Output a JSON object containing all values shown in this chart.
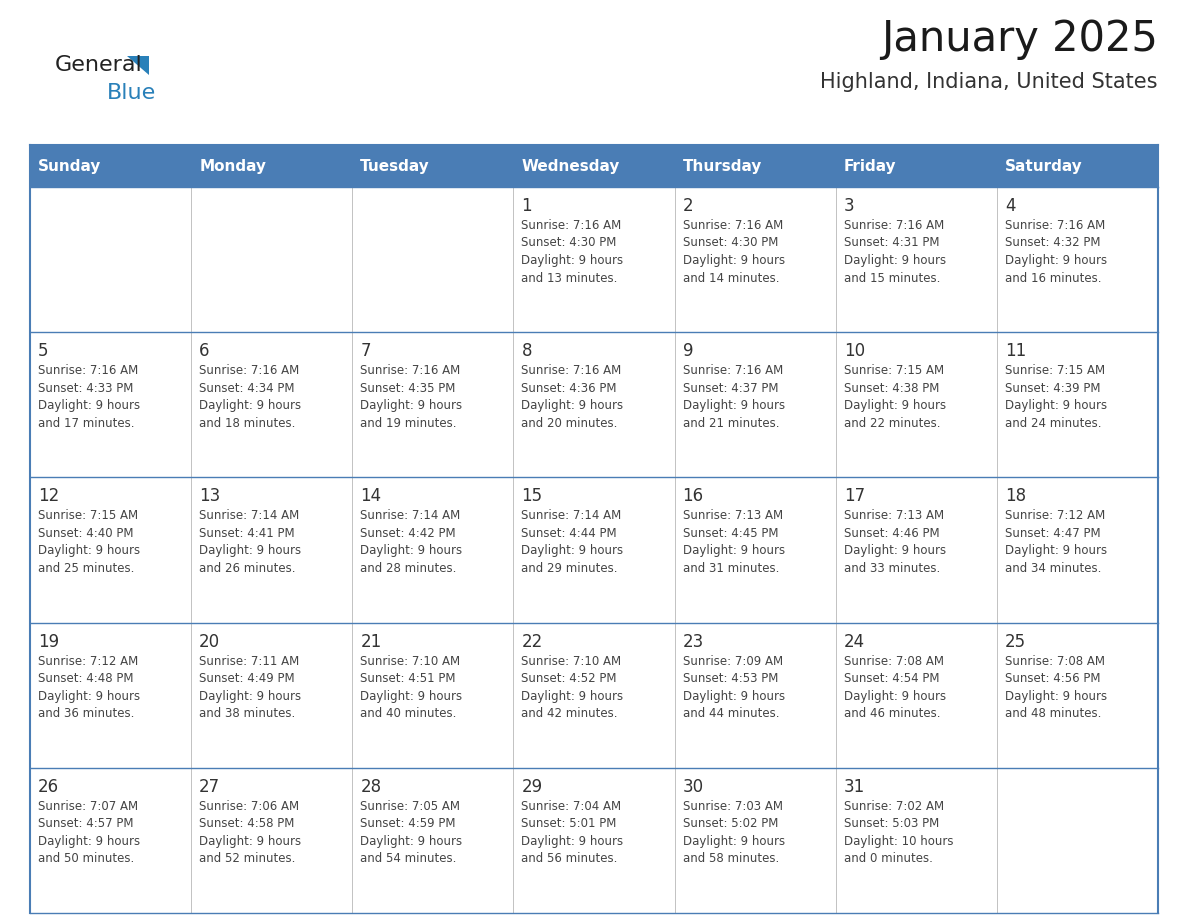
{
  "title": "January 2025",
  "subtitle": "Highland, Indiana, United States",
  "header_bg": "#4A7DB5",
  "header_text_color": "#FFFFFF",
  "row_bg_colors": [
    "#FFFFFF",
    "#FFFFFF",
    "#FFFFFF",
    "#FFFFFF",
    "#FFFFFF"
  ],
  "border_color": "#4A7DB5",
  "text_color": "#444444",
  "day_num_color": "#333333",
  "days_of_week": [
    "Sunday",
    "Monday",
    "Tuesday",
    "Wednesday",
    "Thursday",
    "Friday",
    "Saturday"
  ],
  "calendar_data": [
    [
      {
        "day": "",
        "lines": []
      },
      {
        "day": "",
        "lines": []
      },
      {
        "day": "",
        "lines": []
      },
      {
        "day": "1",
        "lines": [
          "Sunrise: 7:16 AM",
          "Sunset: 4:30 PM",
          "Daylight: 9 hours",
          "and 13 minutes."
        ]
      },
      {
        "day": "2",
        "lines": [
          "Sunrise: 7:16 AM",
          "Sunset: 4:30 PM",
          "Daylight: 9 hours",
          "and 14 minutes."
        ]
      },
      {
        "day": "3",
        "lines": [
          "Sunrise: 7:16 AM",
          "Sunset: 4:31 PM",
          "Daylight: 9 hours",
          "and 15 minutes."
        ]
      },
      {
        "day": "4",
        "lines": [
          "Sunrise: 7:16 AM",
          "Sunset: 4:32 PM",
          "Daylight: 9 hours",
          "and 16 minutes."
        ]
      }
    ],
    [
      {
        "day": "5",
        "lines": [
          "Sunrise: 7:16 AM",
          "Sunset: 4:33 PM",
          "Daylight: 9 hours",
          "and 17 minutes."
        ]
      },
      {
        "day": "6",
        "lines": [
          "Sunrise: 7:16 AM",
          "Sunset: 4:34 PM",
          "Daylight: 9 hours",
          "and 18 minutes."
        ]
      },
      {
        "day": "7",
        "lines": [
          "Sunrise: 7:16 AM",
          "Sunset: 4:35 PM",
          "Daylight: 9 hours",
          "and 19 minutes."
        ]
      },
      {
        "day": "8",
        "lines": [
          "Sunrise: 7:16 AM",
          "Sunset: 4:36 PM",
          "Daylight: 9 hours",
          "and 20 minutes."
        ]
      },
      {
        "day": "9",
        "lines": [
          "Sunrise: 7:16 AM",
          "Sunset: 4:37 PM",
          "Daylight: 9 hours",
          "and 21 minutes."
        ]
      },
      {
        "day": "10",
        "lines": [
          "Sunrise: 7:15 AM",
          "Sunset: 4:38 PM",
          "Daylight: 9 hours",
          "and 22 minutes."
        ]
      },
      {
        "day": "11",
        "lines": [
          "Sunrise: 7:15 AM",
          "Sunset: 4:39 PM",
          "Daylight: 9 hours",
          "and 24 minutes."
        ]
      }
    ],
    [
      {
        "day": "12",
        "lines": [
          "Sunrise: 7:15 AM",
          "Sunset: 4:40 PM",
          "Daylight: 9 hours",
          "and 25 minutes."
        ]
      },
      {
        "day": "13",
        "lines": [
          "Sunrise: 7:14 AM",
          "Sunset: 4:41 PM",
          "Daylight: 9 hours",
          "and 26 minutes."
        ]
      },
      {
        "day": "14",
        "lines": [
          "Sunrise: 7:14 AM",
          "Sunset: 4:42 PM",
          "Daylight: 9 hours",
          "and 28 minutes."
        ]
      },
      {
        "day": "15",
        "lines": [
          "Sunrise: 7:14 AM",
          "Sunset: 4:44 PM",
          "Daylight: 9 hours",
          "and 29 minutes."
        ]
      },
      {
        "day": "16",
        "lines": [
          "Sunrise: 7:13 AM",
          "Sunset: 4:45 PM",
          "Daylight: 9 hours",
          "and 31 minutes."
        ]
      },
      {
        "day": "17",
        "lines": [
          "Sunrise: 7:13 AM",
          "Sunset: 4:46 PM",
          "Daylight: 9 hours",
          "and 33 minutes."
        ]
      },
      {
        "day": "18",
        "lines": [
          "Sunrise: 7:12 AM",
          "Sunset: 4:47 PM",
          "Daylight: 9 hours",
          "and 34 minutes."
        ]
      }
    ],
    [
      {
        "day": "19",
        "lines": [
          "Sunrise: 7:12 AM",
          "Sunset: 4:48 PM",
          "Daylight: 9 hours",
          "and 36 minutes."
        ]
      },
      {
        "day": "20",
        "lines": [
          "Sunrise: 7:11 AM",
          "Sunset: 4:49 PM",
          "Daylight: 9 hours",
          "and 38 minutes."
        ]
      },
      {
        "day": "21",
        "lines": [
          "Sunrise: 7:10 AM",
          "Sunset: 4:51 PM",
          "Daylight: 9 hours",
          "and 40 minutes."
        ]
      },
      {
        "day": "22",
        "lines": [
          "Sunrise: 7:10 AM",
          "Sunset: 4:52 PM",
          "Daylight: 9 hours",
          "and 42 minutes."
        ]
      },
      {
        "day": "23",
        "lines": [
          "Sunrise: 7:09 AM",
          "Sunset: 4:53 PM",
          "Daylight: 9 hours",
          "and 44 minutes."
        ]
      },
      {
        "day": "24",
        "lines": [
          "Sunrise: 7:08 AM",
          "Sunset: 4:54 PM",
          "Daylight: 9 hours",
          "and 46 minutes."
        ]
      },
      {
        "day": "25",
        "lines": [
          "Sunrise: 7:08 AM",
          "Sunset: 4:56 PM",
          "Daylight: 9 hours",
          "and 48 minutes."
        ]
      }
    ],
    [
      {
        "day": "26",
        "lines": [
          "Sunrise: 7:07 AM",
          "Sunset: 4:57 PM",
          "Daylight: 9 hours",
          "and 50 minutes."
        ]
      },
      {
        "day": "27",
        "lines": [
          "Sunrise: 7:06 AM",
          "Sunset: 4:58 PM",
          "Daylight: 9 hours",
          "and 52 minutes."
        ]
      },
      {
        "day": "28",
        "lines": [
          "Sunrise: 7:05 AM",
          "Sunset: 4:59 PM",
          "Daylight: 9 hours",
          "and 54 minutes."
        ]
      },
      {
        "day": "29",
        "lines": [
          "Sunrise: 7:04 AM",
          "Sunset: 5:01 PM",
          "Daylight: 9 hours",
          "and 56 minutes."
        ]
      },
      {
        "day": "30",
        "lines": [
          "Sunrise: 7:03 AM",
          "Sunset: 5:02 PM",
          "Daylight: 9 hours",
          "and 58 minutes."
        ]
      },
      {
        "day": "31",
        "lines": [
          "Sunrise: 7:02 AM",
          "Sunset: 5:03 PM",
          "Daylight: 10 hours",
          "and 0 minutes."
        ]
      },
      {
        "day": "",
        "lines": []
      }
    ]
  ],
  "logo_general_color": "#222222",
  "logo_blue_color": "#2980B9",
  "logo_triangle_color": "#2980B9"
}
